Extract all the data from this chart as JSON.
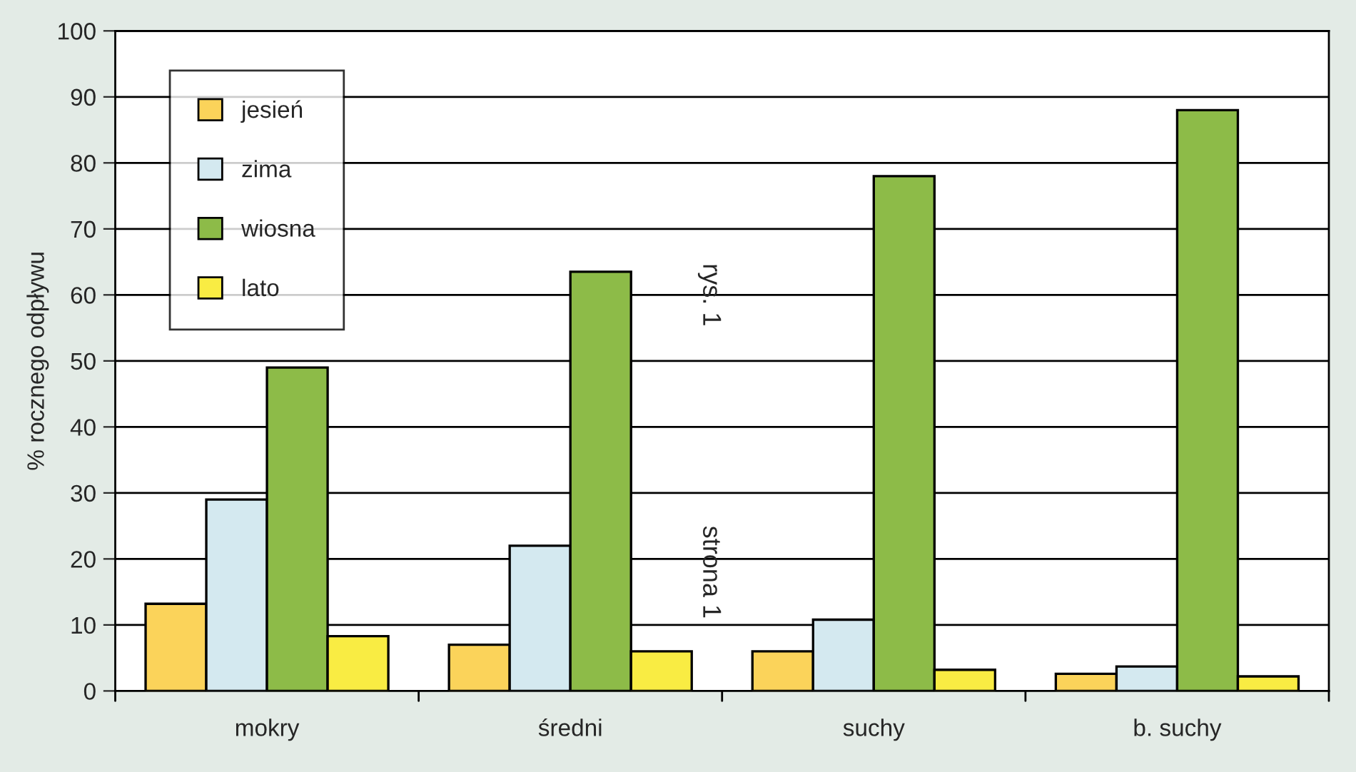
{
  "chart_data": {
    "type": "bar",
    "ylabel": "% rocznego odpływu",
    "categories": [
      "mokry",
      "średni",
      "suchy",
      "b. suchy"
    ],
    "series": [
      {
        "name": "jesień",
        "color": "#fbd35a",
        "values": [
          13.2,
          7,
          6,
          2.6
        ]
      },
      {
        "name": "zima",
        "color": "#d4e9f0",
        "values": [
          29,
          22,
          10.8,
          3.7
        ]
      },
      {
        "name": "wiosna",
        "color": "#8dbb48",
        "values": [
          49,
          63.5,
          78,
          88
        ]
      },
      {
        "name": "lato",
        "color": "#f9ec43",
        "values": [
          8.3,
          6,
          3.2,
          2.2
        ]
      }
    ],
    "ylim": [
      0,
      100
    ],
    "yticks": [
      0,
      10,
      20,
      30,
      40,
      50,
      60,
      70,
      80,
      90,
      100
    ],
    "grid": "y",
    "legend": "top left",
    "annotations": [
      "rys. 1",
      "strona 1"
    ]
  }
}
